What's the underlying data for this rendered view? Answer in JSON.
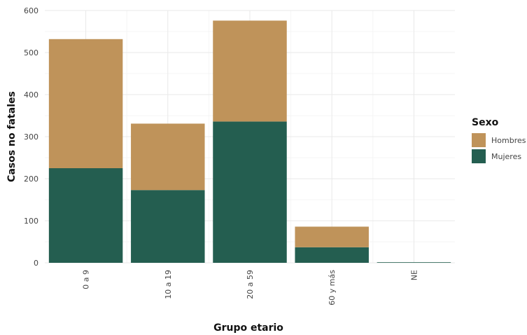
{
  "chart_data": {
    "type": "bar",
    "stacked": true,
    "categories": [
      "0 a 9",
      "10 a 19",
      "20 a 59",
      "60 y más",
      "NE"
    ],
    "series": [
      {
        "name": "Mujeres",
        "color": "#245e50",
        "values": [
          225,
          173,
          336,
          37,
          1
        ]
      },
      {
        "name": "Hombres",
        "color": "#bf935a",
        "values": [
          307,
          158,
          240,
          49,
          0
        ]
      }
    ],
    "xlabel": "Grupo etario",
    "ylabel": "Casos no fatales",
    "ylim": [
      0,
      600
    ],
    "yticks": [
      0,
      100,
      200,
      300,
      400,
      500,
      600
    ],
    "grid": true,
    "legend": {
      "title": "Sexo",
      "position": "right",
      "entries": [
        "Hombres",
        "Mujeres"
      ]
    }
  }
}
